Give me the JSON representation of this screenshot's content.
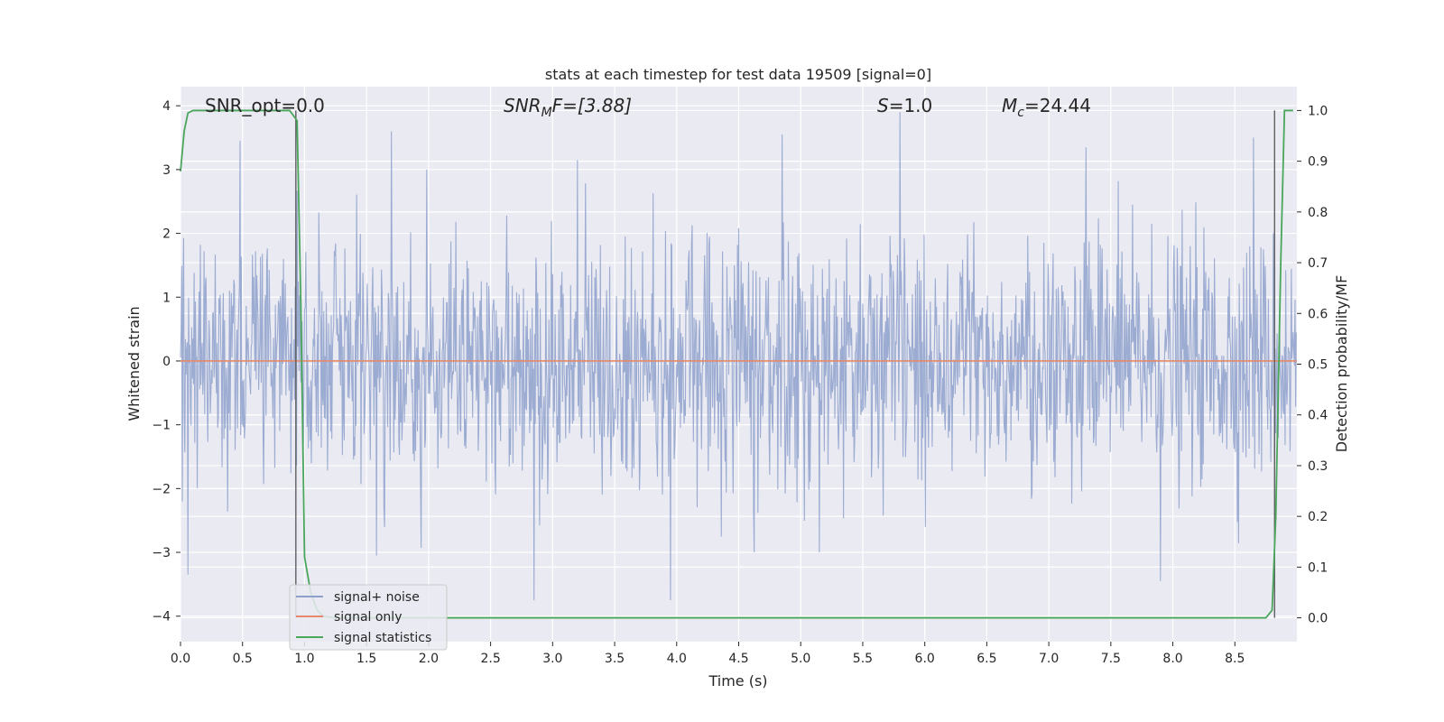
{
  "chart_data": {
    "type": "line",
    "title": "stats at each timestep for test data 19509 [signal=0]",
    "xlabel": "Time (s)",
    "ylabel": "Whitened strain",
    "y2label": "Detection probability/MF",
    "xlim": [
      0.0,
      9.0
    ],
    "ylim": [
      -4.4,
      4.3
    ],
    "y2lim": [
      -0.047,
      1.047
    ],
    "x_ticks": [
      0.0,
      0.5,
      1.0,
      1.5,
      2.0,
      2.5,
      3.0,
      3.5,
      4.0,
      4.5,
      5.0,
      5.5,
      6.0,
      6.5,
      7.0,
      7.5,
      8.0,
      8.5
    ],
    "x_tick_labels": [
      "0.0",
      "0.5",
      "1.0",
      "1.5",
      "2.0",
      "2.5",
      "3.0",
      "3.5",
      "4.0",
      "4.5",
      "5.0",
      "5.5",
      "6.0",
      "6.5",
      "7.0",
      "7.5",
      "8.0",
      "8.5"
    ],
    "y_ticks": [
      4,
      3,
      2,
      1,
      0,
      -1,
      -2,
      -3,
      -4
    ],
    "y_tick_labels": [
      "4",
      "3",
      "2",
      "1",
      "0",
      "−1",
      "−2",
      "−3",
      "−4"
    ],
    "y2_ticks": [
      1.0,
      0.9,
      0.8,
      0.7,
      0.6,
      0.5,
      0.4,
      0.3,
      0.2,
      0.1,
      0.0
    ],
    "y2_tick_labels": [
      "1.0",
      "0.9",
      "0.8",
      "0.7",
      "0.6",
      "0.5",
      "0.4",
      "0.3",
      "0.2",
      "0.1",
      "0.0"
    ],
    "grid": true,
    "legend_position": "lower-left",
    "annotations": {
      "snr_opt": "SNR_opt=0.0",
      "snr_mf_base": "SNR",
      "snr_mf_sub": "M",
      "snr_mf_rest": "F=[3.88]",
      "s_base": "S",
      "s_rest": "=1.0",
      "mc_base": "M",
      "mc_sub": "c",
      "mc_rest": "=24.44"
    },
    "series": [
      {
        "name": "signal+ noise",
        "color": "#8da0cb",
        "noise_sigma": 0.95,
        "sample_rate": 200,
        "peaks": [
          [
            0.48,
            3.45
          ],
          [
            1.7,
            3.6
          ],
          [
            3.2,
            3.15
          ],
          [
            4.85,
            3.55
          ],
          [
            5.8,
            3.9
          ],
          [
            7.3,
            3.35
          ],
          [
            8.65,
            3.5
          ],
          [
            0.06,
            -3.35
          ],
          [
            2.85,
            -3.75
          ],
          [
            3.95,
            -3.75
          ],
          [
            7.9,
            -3.45
          ],
          [
            1.58,
            -3.05
          ]
        ]
      },
      {
        "name": "signal only",
        "color": "#e5896a",
        "values": [
          0.0,
          0.0
        ]
      },
      {
        "name": "signal statistics",
        "color": "#4aa65b",
        "x": [
          0.0,
          0.03,
          0.06,
          0.1,
          0.15,
          0.2,
          0.3,
          0.4,
          0.5,
          0.6,
          0.7,
          0.8,
          0.88,
          0.94,
          0.97,
          1.0,
          1.05,
          1.1,
          1.15,
          1.25,
          1.5,
          2.0,
          3.0,
          4.0,
          5.0,
          6.0,
          7.0,
          8.0,
          8.5,
          8.75,
          8.8,
          8.83,
          8.87,
          8.9,
          8.97
        ],
        "values": [
          0.88,
          0.96,
          0.995,
          1.0,
          1.0,
          1.0,
          1.0,
          1.0,
          1.0,
          1.0,
          1.0,
          1.0,
          1.0,
          0.98,
          0.62,
          0.12,
          0.05,
          0.016,
          0.003,
          0.0,
          0.0,
          0.0,
          0.0,
          0.0,
          0.0,
          0.0,
          0.0,
          0.0,
          0.0,
          0.0,
          0.015,
          0.2,
          0.7,
          1.0,
          1.0
        ]
      }
    ],
    "vertical_lines": [
      {
        "x": 0.93,
        "color": "#555555"
      },
      {
        "x": 8.82,
        "color": "#555555"
      }
    ]
  }
}
